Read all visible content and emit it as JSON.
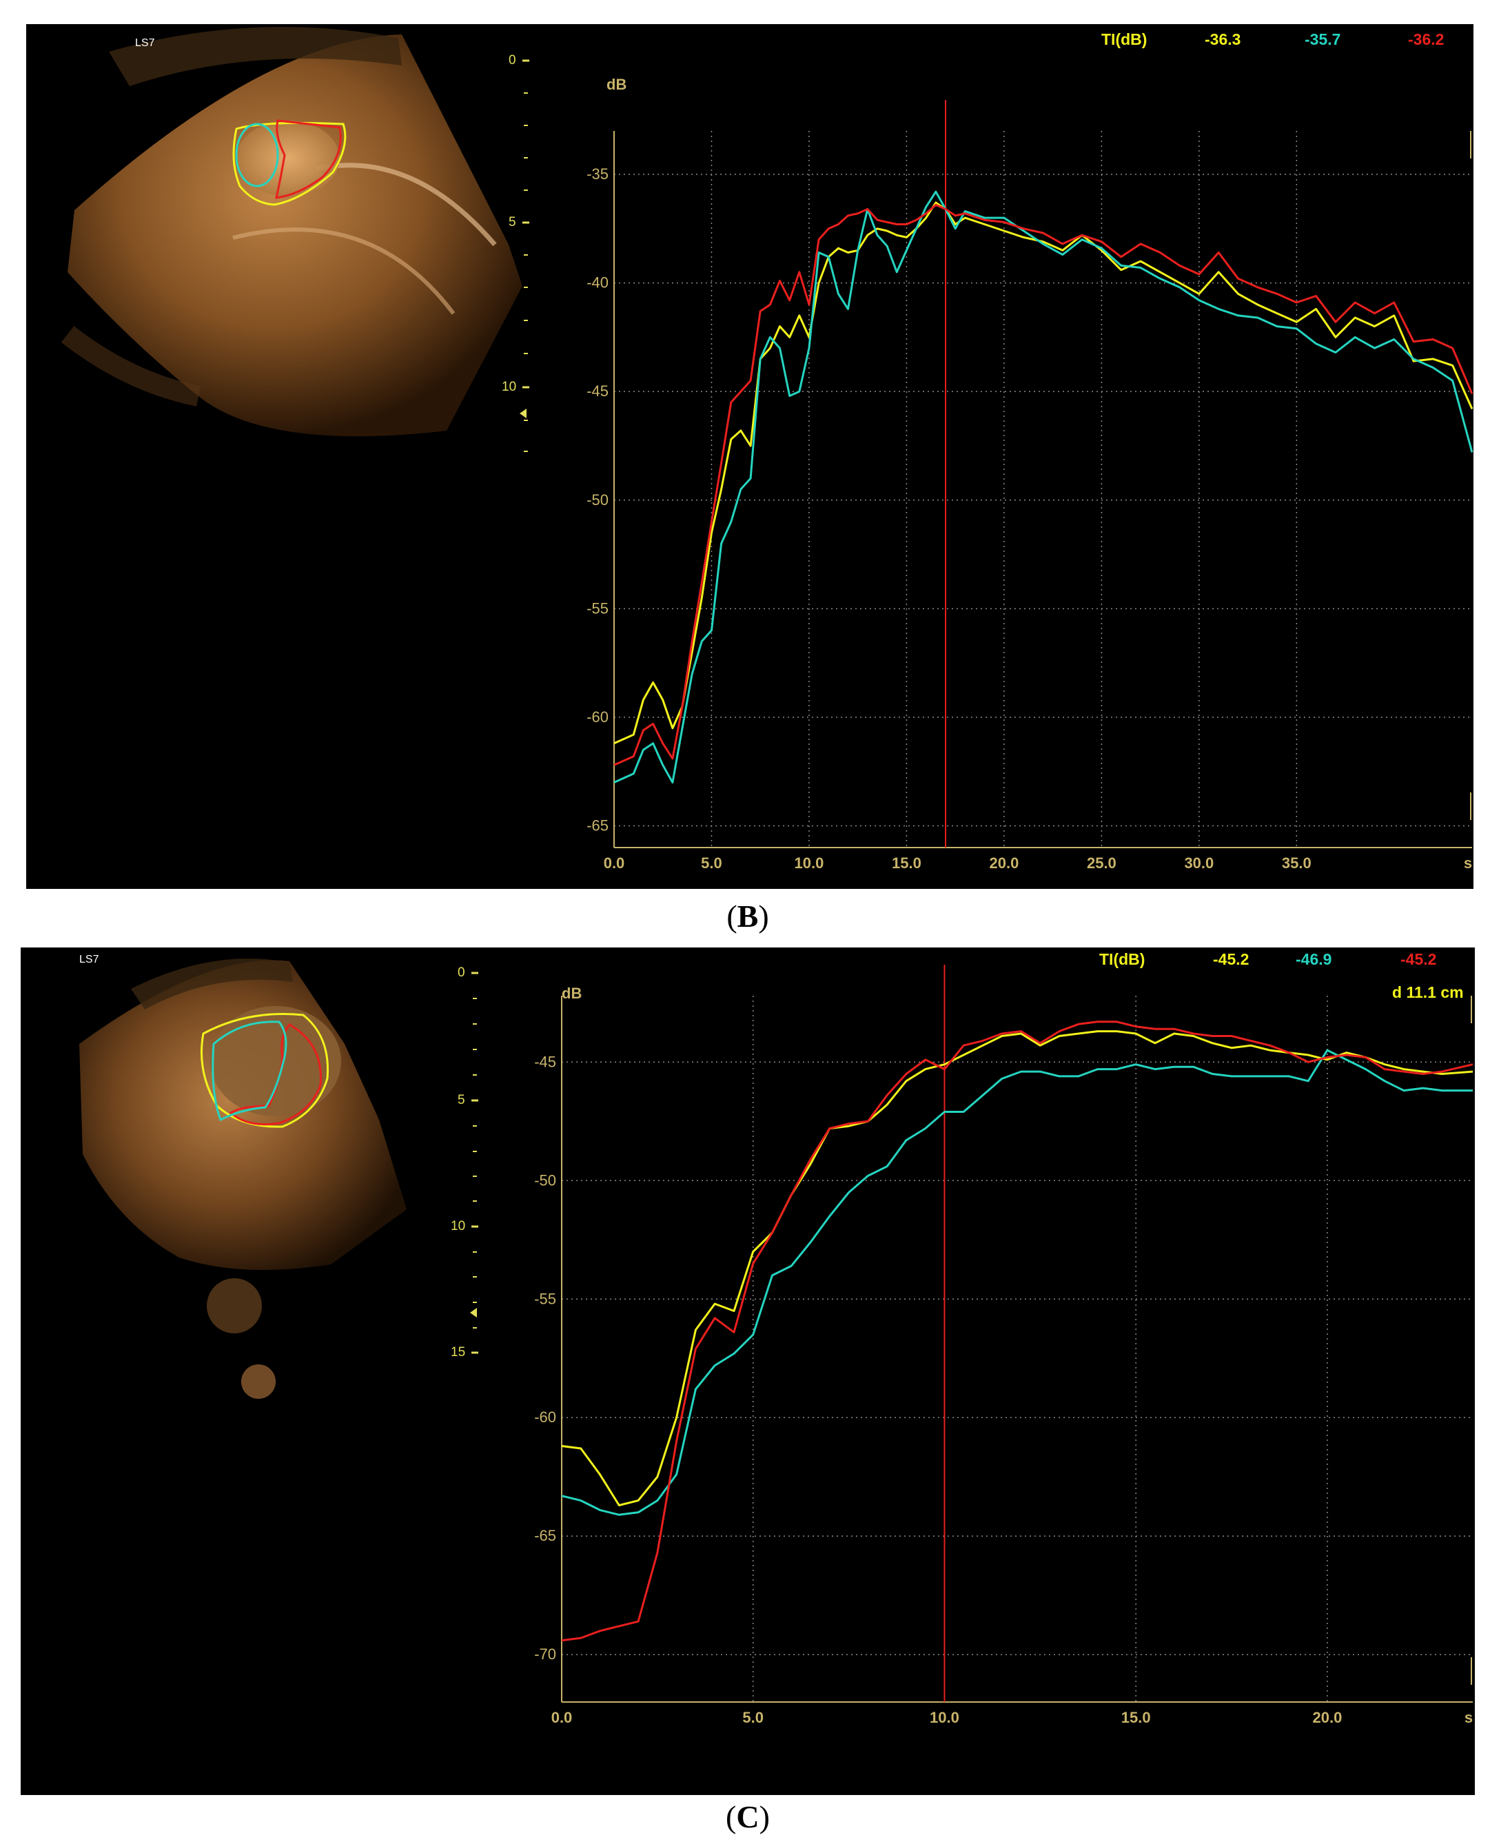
{
  "panels": [
    {
      "id": "B",
      "caption": "B",
      "probe_label": "LS7",
      "depth_labels": [
        "0",
        "5",
        "10"
      ],
      "header": {
        "label": "TI(dB)",
        "yellow": "-36.3",
        "cyan": "-35.7",
        "red": "-36.2"
      },
      "extra_label": "",
      "colors": {
        "yellow": "#f2f21c",
        "cyan": "#25d4c0",
        "red": "#e8201e",
        "axis_text": "#c9b46a",
        "grid": "#8a8a8a"
      }
    },
    {
      "id": "C",
      "caption": "C",
      "probe_label": "LS7",
      "depth_labels": [
        "0",
        "5",
        "10",
        "15"
      ],
      "header": {
        "label": "TI(dB)",
        "yellow": "-45.2",
        "cyan": "-46.9",
        "red": "-45.2"
      },
      "extra_label": "d 11.1 cm",
      "colors": {
        "yellow": "#f2f21c",
        "cyan": "#25d4c0",
        "red": "#e8201e",
        "axis_text": "#c9b46a",
        "grid": "#8a8a8a"
      }
    }
  ],
  "chart_data": [
    {
      "type": "line",
      "ylabel": "dB",
      "xunit": "s",
      "xlim": [
        0,
        44
      ],
      "ylim": [
        -66,
        -33
      ],
      "xticks": [
        "0.0",
        "5.0",
        "10.0",
        "15.0",
        "20.0",
        "25.0",
        "30.0",
        "35.0"
      ],
      "xtick_values": [
        0,
        5,
        10,
        15,
        20,
        25,
        30,
        35
      ],
      "yticks": [
        "-35",
        "-40",
        "-45",
        "-50",
        "-55",
        "-60",
        "-65"
      ],
      "ytick_values": [
        -35,
        -40,
        -45,
        -50,
        -55,
        -60,
        -65
      ],
      "marker_x": 17,
      "series": [
        {
          "color": "yellow",
          "x": [
            0,
            1,
            1.5,
            2,
            2.5,
            3,
            3.5,
            4,
            4.5,
            5,
            5.5,
            6,
            6.5,
            7,
            7.5,
            8,
            8.5,
            9,
            9.5,
            10,
            10.5,
            11,
            11.5,
            12,
            12.5,
            13,
            13.5,
            14,
            14.5,
            15,
            15.5,
            16,
            16.5,
            17,
            17.5,
            18,
            19,
            20,
            21,
            22,
            23,
            24,
            25,
            26,
            27,
            28,
            29,
            30,
            31,
            32,
            33,
            34,
            35,
            36,
            37,
            38,
            39,
            40,
            41,
            42,
            43,
            44
          ],
          "y": [
            -61.2,
            -60.8,
            -59.2,
            -58.4,
            -59.2,
            -60.5,
            -59.5,
            -57,
            -54.5,
            -51.5,
            -49.5,
            -47.2,
            -46.8,
            -47.5,
            -43.5,
            -43,
            -42,
            -42.5,
            -41.5,
            -42.5,
            -40,
            -38.8,
            -38.4,
            -38.6,
            -38.5,
            -37.8,
            -37.5,
            -37.6,
            -37.8,
            -37.9,
            -37.5,
            -37,
            -36.3,
            -36.6,
            -37.3,
            -37,
            -37.3,
            -37.6,
            -37.9,
            -38.1,
            -38.5,
            -37.8,
            -38.5,
            -39.4,
            -39,
            -39.5,
            -40,
            -40.5,
            -39.5,
            -40.5,
            -41,
            -41.4,
            -41.8,
            -41.2,
            -42.5,
            -41.6,
            -42,
            -41.5,
            -43.6,
            -43.5,
            -43.8,
            -45.8
          ]
        },
        {
          "color": "cyan",
          "x": [
            0,
            1,
            1.5,
            2,
            2.5,
            3,
            3.5,
            4,
            4.5,
            5,
            5.5,
            6,
            6.5,
            7,
            7.5,
            8,
            8.5,
            9,
            9.5,
            10,
            10.5,
            11,
            11.5,
            12,
            12.5,
            13,
            13.5,
            14,
            14.5,
            15,
            15.5,
            16,
            16.5,
            17,
            17.5,
            18,
            19,
            20,
            21,
            22,
            23,
            24,
            25,
            26,
            27,
            28,
            29,
            30,
            31,
            32,
            33,
            34,
            35,
            36,
            37,
            38,
            39,
            40,
            41,
            42,
            43,
            44
          ],
          "y": [
            -63,
            -62.6,
            -61.5,
            -61.2,
            -62.2,
            -63,
            -60.5,
            -58,
            -56.5,
            -56,
            -52,
            -51,
            -49.5,
            -49,
            -43.5,
            -42.5,
            -43,
            -45.2,
            -45,
            -43,
            -38.6,
            -38.8,
            -40.5,
            -41.2,
            -38.5,
            -36.6,
            -37.8,
            -38.3,
            -39.5,
            -38.5,
            -37.5,
            -36.5,
            -35.8,
            -36.6,
            -37.5,
            -36.7,
            -37,
            -37,
            -37.6,
            -38.2,
            -38.7,
            -38,
            -38.4,
            -39.2,
            -39.3,
            -39.8,
            -40.2,
            -40.8,
            -41.2,
            -41.5,
            -41.6,
            -42,
            -42.1,
            -42.8,
            -43.2,
            -42.5,
            -43,
            -42.6,
            -43.5,
            -43.9,
            -44.5,
            -47.8
          ]
        },
        {
          "color": "red",
          "x": [
            0,
            1,
            1.5,
            2,
            2.5,
            3,
            3.5,
            4,
            4.5,
            5,
            5.5,
            6,
            6.5,
            7,
            7.5,
            8,
            8.5,
            9,
            9.5,
            10,
            10.5,
            11,
            11.5,
            12,
            12.5,
            13,
            13.5,
            14,
            14.5,
            15,
            15.5,
            16,
            16.5,
            17,
            17.5,
            18,
            19,
            20,
            21,
            22,
            23,
            24,
            25,
            26,
            27,
            28,
            29,
            30,
            31,
            32,
            33,
            34,
            35,
            36,
            37,
            38,
            39,
            40,
            41,
            42,
            43,
            44
          ],
          "y": [
            -62.2,
            -61.8,
            -60.6,
            -60.3,
            -61.2,
            -61.9,
            -59.5,
            -56.5,
            -53.8,
            -51,
            -48.3,
            -45.5,
            -45,
            -44.5,
            -41.3,
            -41,
            -39.9,
            -40.8,
            -39.5,
            -41,
            -38,
            -37.5,
            -37.3,
            -36.9,
            -36.8,
            -36.6,
            -37.1,
            -37.2,
            -37.3,
            -37.3,
            -37.1,
            -36.8,
            -36.4,
            -36.6,
            -36.9,
            -36.8,
            -37.1,
            -37.2,
            -37.5,
            -37.7,
            -38.2,
            -37.8,
            -38.1,
            -38.8,
            -38.2,
            -38.6,
            -39.2,
            -39.6,
            -38.6,
            -39.8,
            -40.2,
            -40.5,
            -40.9,
            -40.6,
            -41.8,
            -40.9,
            -41.4,
            -40.9,
            -42.7,
            -42.6,
            -43,
            -45.1
          ]
        }
      ]
    },
    {
      "type": "line",
      "ylabel": "dB",
      "xunit": "s",
      "xlim": [
        0,
        23.8
      ],
      "ylim": [
        -72,
        -42.2
      ],
      "xticks": [
        "0.0",
        "5.0",
        "10.0",
        "15.0",
        "20.0"
      ],
      "xtick_values": [
        0,
        5,
        10,
        15,
        20
      ],
      "yticks": [
        "-45",
        "-50",
        "-55",
        "-60",
        "-65",
        "-70"
      ],
      "ytick_values": [
        -45,
        -50,
        -55,
        -60,
        -65,
        -70
      ],
      "marker_x": 10,
      "series": [
        {
          "color": "yellow",
          "x": [
            0,
            0.5,
            1,
            1.5,
            2,
            2.5,
            3,
            3.5,
            4,
            4.5,
            5,
            5.5,
            6,
            6.5,
            7,
            7.5,
            8,
            8.5,
            9,
            9.5,
            10,
            10.5,
            11,
            11.5,
            12,
            12.5,
            13,
            13.5,
            14,
            14.5,
            15,
            15.5,
            16,
            16.5,
            17,
            17.5,
            18,
            18.5,
            19,
            19.5,
            20,
            20.5,
            21,
            21.5,
            22,
            22.5,
            23,
            23.8
          ],
          "y": [
            -61.2,
            -61.3,
            -62.4,
            -63.7,
            -63.5,
            -62.5,
            -60,
            -56.3,
            -55.2,
            -55.5,
            -53,
            -52.2,
            -50.6,
            -49.3,
            -47.8,
            -47.7,
            -47.5,
            -46.8,
            -45.8,
            -45.3,
            -45.1,
            -44.7,
            -44.3,
            -43.9,
            -43.8,
            -44.3,
            -43.9,
            -43.8,
            -43.7,
            -43.7,
            -43.8,
            -44.2,
            -43.8,
            -43.9,
            -44.2,
            -44.4,
            -44.3,
            -44.5,
            -44.6,
            -44.7,
            -44.9,
            -44.6,
            -44.8,
            -45.1,
            -45.3,
            -45.4,
            -45.5,
            -45.4
          ]
        },
        {
          "color": "cyan",
          "x": [
            0,
            0.5,
            1,
            1.5,
            2,
            2.5,
            3,
            3.5,
            4,
            4.5,
            5,
            5.5,
            6,
            6.5,
            7,
            7.5,
            8,
            8.5,
            9,
            9.5,
            10,
            10.5,
            11,
            11.5,
            12,
            12.5,
            13,
            13.5,
            14,
            14.5,
            15,
            15.5,
            16,
            16.5,
            17,
            17.5,
            18,
            18.5,
            19,
            19.5,
            20,
            20.5,
            21,
            21.5,
            22,
            22.5,
            23,
            23.8
          ],
          "y": [
            -63.3,
            -63.5,
            -63.9,
            -64.1,
            -64,
            -63.5,
            -62.4,
            -58.8,
            -57.8,
            -57.3,
            -56.5,
            -54,
            -53.6,
            -52.6,
            -51.5,
            -50.5,
            -49.8,
            -49.4,
            -48.3,
            -47.8,
            -47.1,
            -47.1,
            -46.4,
            -45.7,
            -45.4,
            -45.4,
            -45.6,
            -45.6,
            -45.3,
            -45.3,
            -45.1,
            -45.3,
            -45.2,
            -45.2,
            -45.5,
            -45.6,
            -45.6,
            -45.6,
            -45.6,
            -45.8,
            -44.5,
            -44.9,
            -45.3,
            -45.8,
            -46.2,
            -46.1,
            -46.2,
            -46.2
          ]
        },
        {
          "color": "red",
          "x": [
            0,
            0.5,
            1,
            1.5,
            2,
            2.5,
            3,
            3.5,
            4,
            4.5,
            5,
            5.5,
            6,
            6.5,
            7,
            7.5,
            8,
            8.5,
            9,
            9.5,
            10,
            10.5,
            11,
            11.5,
            12,
            12.5,
            13,
            13.5,
            14,
            14.5,
            15,
            15.5,
            16,
            16.5,
            17,
            17.5,
            18,
            18.5,
            19,
            19.5,
            20,
            20.5,
            21,
            21.5,
            22,
            22.5,
            23,
            23.8
          ],
          "y": [
            -69.4,
            -69.3,
            -69,
            -68.8,
            -68.6,
            -65.7,
            -61,
            -57.1,
            -55.8,
            -56.4,
            -53.5,
            -52.2,
            -50.6,
            -49.1,
            -47.8,
            -47.6,
            -47.5,
            -46.4,
            -45.5,
            -44.9,
            -45.3,
            -44.3,
            -44.1,
            -43.8,
            -43.7,
            -44.2,
            -43.7,
            -43.4,
            -43.3,
            -43.3,
            -43.5,
            -43.6,
            -43.6,
            -43.8,
            -43.9,
            -43.9,
            -44.1,
            -44.3,
            -44.6,
            -45,
            -44.8,
            -44.7,
            -44.8,
            -45.3,
            -45.4,
            -45.5,
            -45.4,
            -45.1
          ]
        }
      ]
    }
  ]
}
